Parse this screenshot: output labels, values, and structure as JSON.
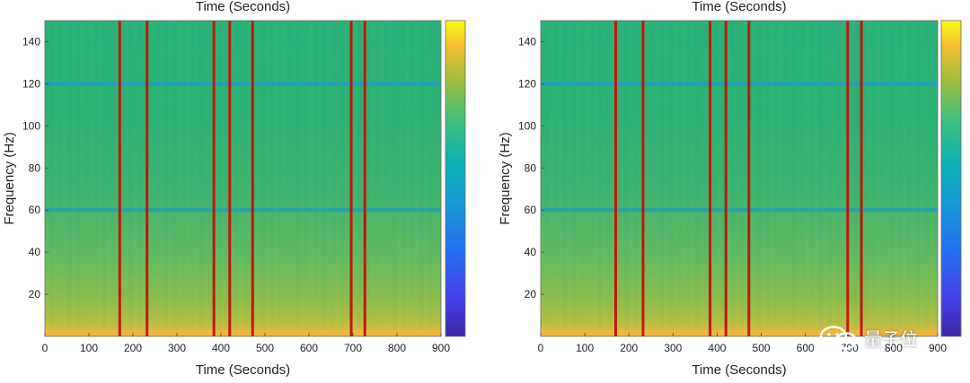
{
  "chart_data": [
    {
      "type": "heatmap",
      "title": "Time (Seconds)",
      "xlabel": "Time (Seconds)",
      "ylabel": "Frequency (Hz)",
      "xlim": [
        0,
        900
      ],
      "ylim": [
        0,
        150
      ],
      "xticks": [
        0,
        100,
        200,
        300,
        400,
        500,
        600,
        700,
        800,
        900
      ],
      "yticks": [
        20,
        40,
        60,
        80,
        100,
        120,
        140
      ],
      "horizontal_bands_hz": [
        60,
        120
      ],
      "event_lines_seconds": [
        170,
        232,
        384,
        420,
        472,
        696,
        727
      ],
      "event_line_color": "#c0180c",
      "colormap": "parula",
      "colorbar": "right",
      "grid": false
    },
    {
      "type": "heatmap",
      "title": "Time (Seconds)",
      "xlabel": "Time (Seconds)",
      "ylabel": "Frequency (Hz)",
      "xlim": [
        0,
        900
      ],
      "ylim": [
        0,
        150
      ],
      "xticks": [
        0,
        100,
        200,
        300,
        400,
        500,
        600,
        700,
        800,
        900
      ],
      "yticks": [
        20,
        40,
        60,
        80,
        100,
        120,
        140
      ],
      "horizontal_bands_hz": [
        60,
        120
      ],
      "event_lines_seconds": [
        170,
        232,
        384,
        420,
        472,
        696,
        727
      ],
      "event_line_color": "#c0180c",
      "colormap": "parula",
      "colorbar": "right",
      "grid": false
    }
  ],
  "watermark": {
    "text": "量子位",
    "icon": "wechat-icon"
  }
}
